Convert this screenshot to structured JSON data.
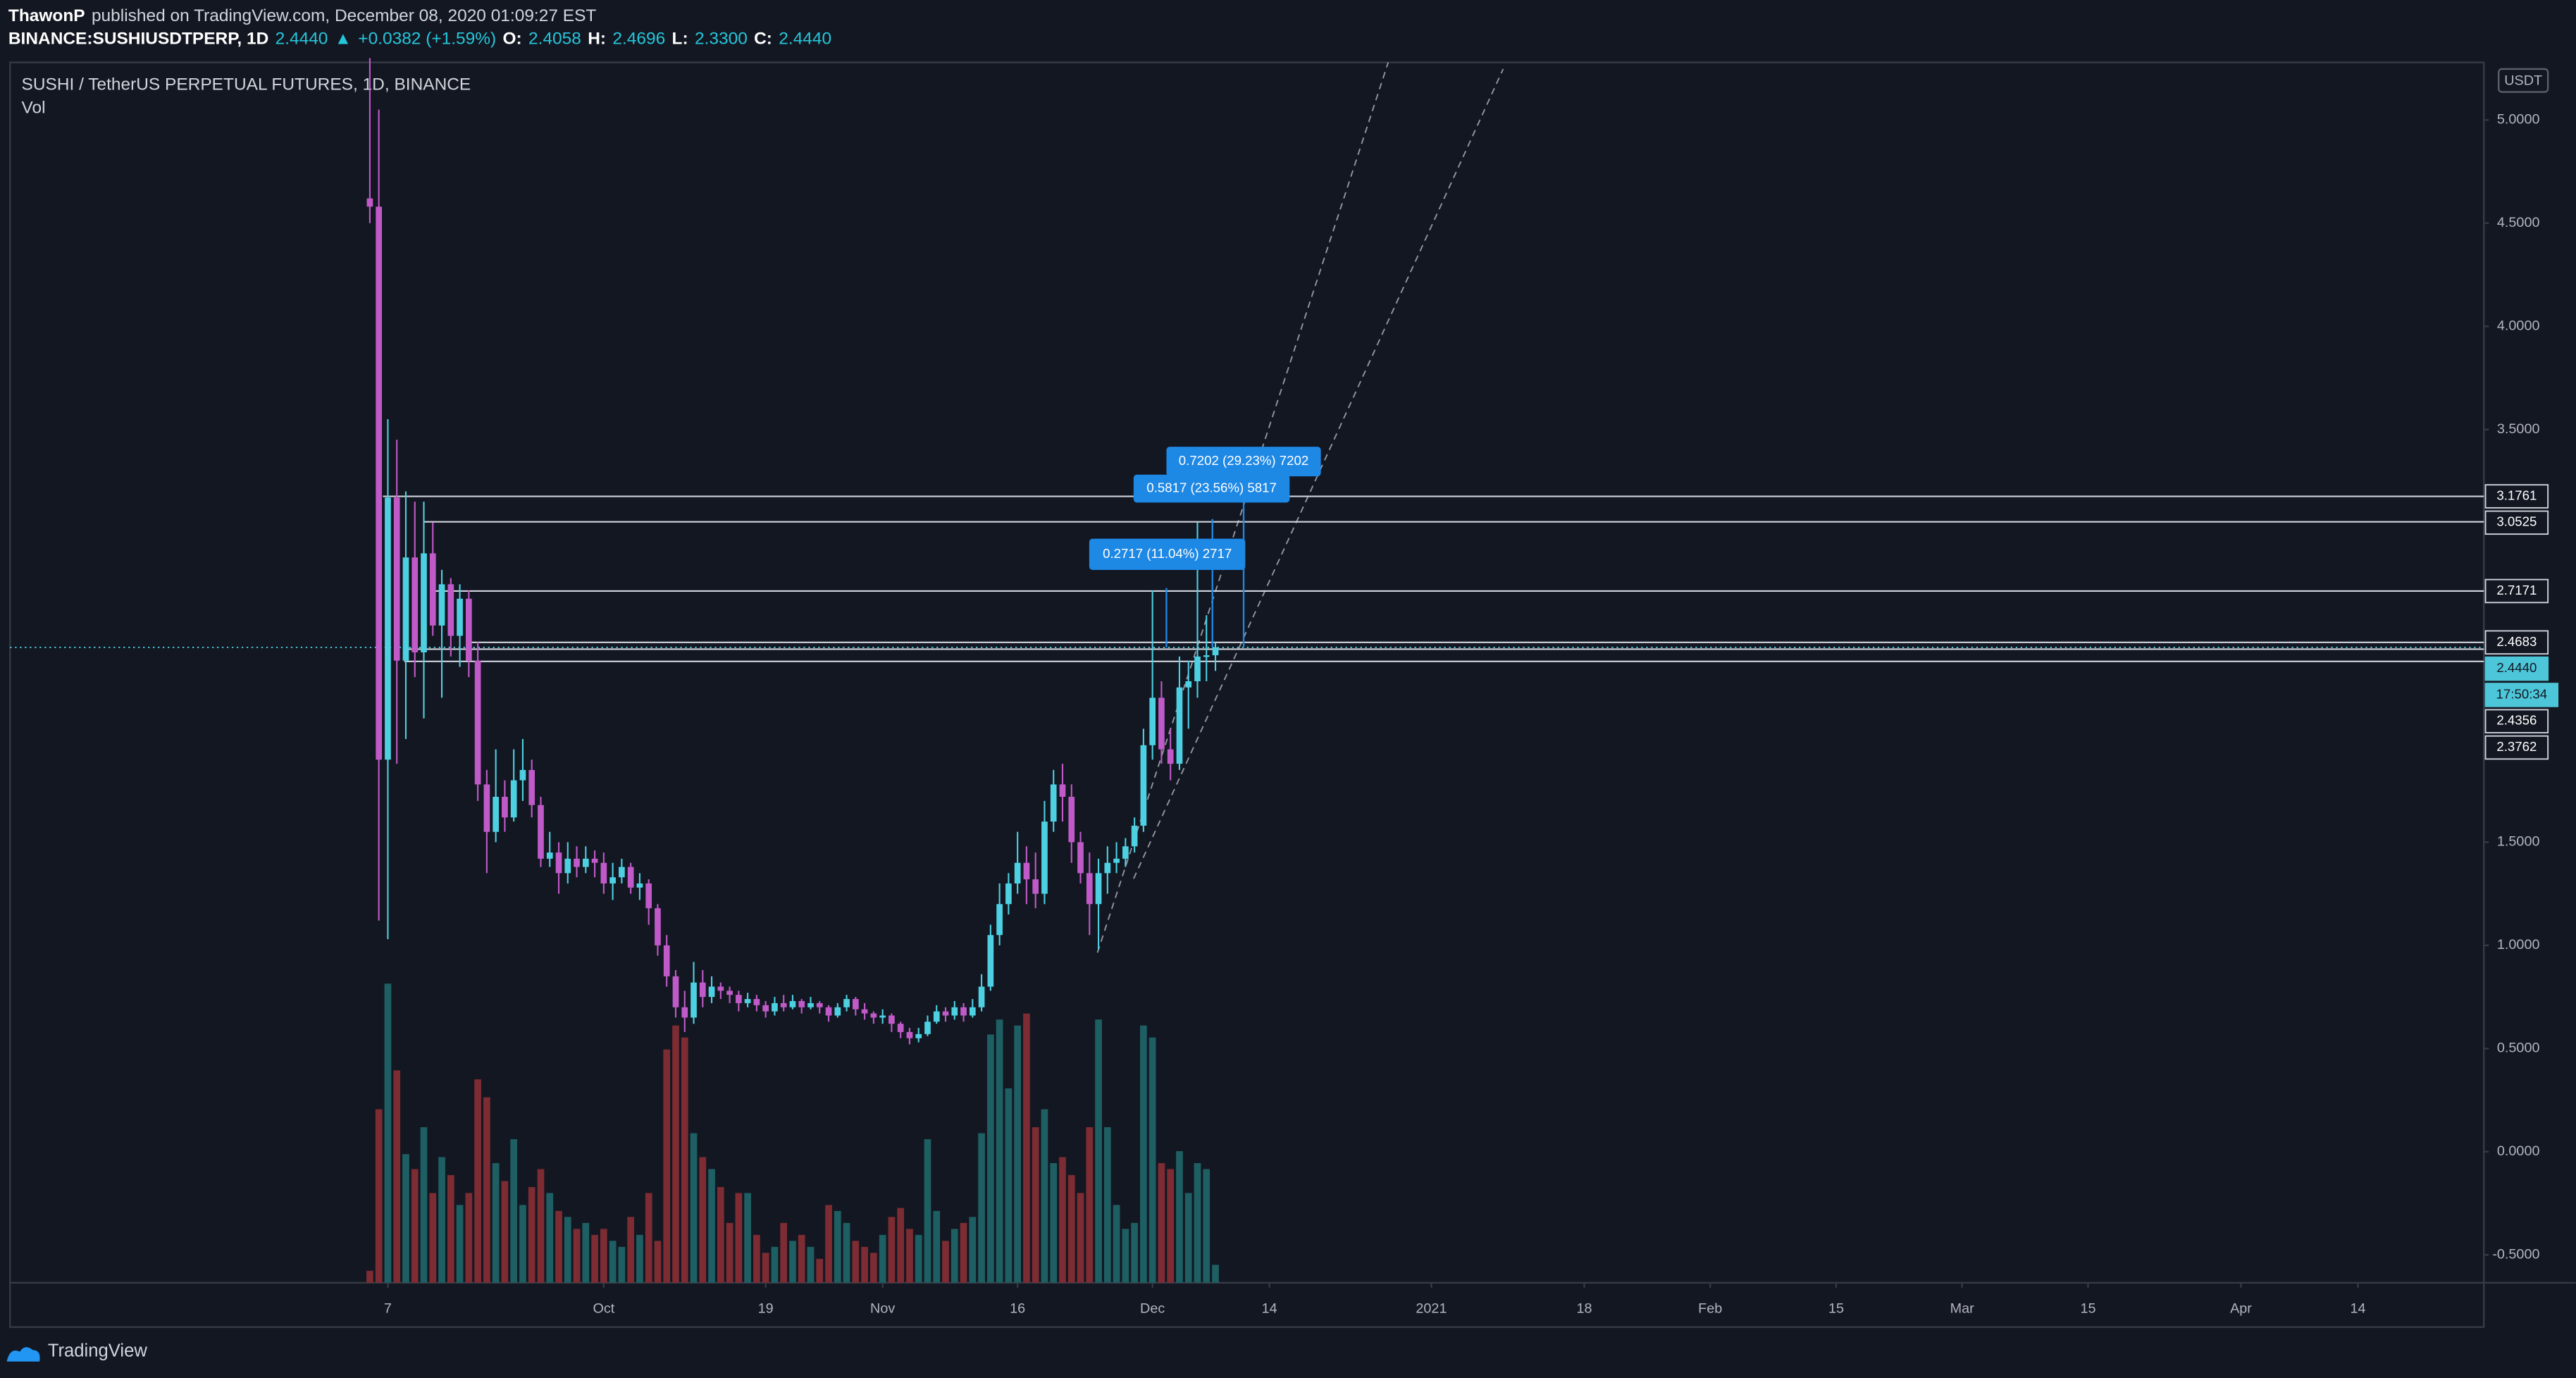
{
  "header": {
    "author": "ThawonP",
    "published": "published on TradingView.com, December 08, 2020 01:09:27 EST",
    "symbol": "BINANCE:SUSHIUSDTPERP, 1D",
    "last": "2.4440",
    "arrow": "▲",
    "change": "+0.0382 (+1.59%)",
    "ohlc": [
      [
        "O:",
        "2.4058"
      ],
      [
        "H:",
        "2.4696"
      ],
      [
        "L:",
        "2.3300"
      ],
      [
        "C:",
        "2.4440"
      ]
    ]
  },
  "footer": {
    "brand": "TradingView"
  },
  "chart_data": {
    "type": "candlestick",
    "title": "SUSHI / TetherUS PERPETUAL FUTURES, 1D, BINANCE",
    "volume_label": "Vol",
    "currency": "USDT",
    "x": [
      "2020-09-05",
      "2020-09-06",
      "2020-09-07",
      "2020-09-08",
      "2020-09-09",
      "2020-09-10",
      "2020-09-11",
      "2020-09-12",
      "2020-09-13",
      "2020-09-14",
      "2020-09-15",
      "2020-09-16",
      "2020-09-17",
      "2020-09-18",
      "2020-09-19",
      "2020-09-20",
      "2020-09-21",
      "2020-09-22",
      "2020-09-23",
      "2020-09-24",
      "2020-09-25",
      "2020-09-26",
      "2020-09-27",
      "2020-09-28",
      "2020-09-29",
      "2020-09-30",
      "2020-10-01",
      "2020-10-02",
      "2020-10-03",
      "2020-10-04",
      "2020-10-05",
      "2020-10-06",
      "2020-10-07",
      "2020-10-08",
      "2020-10-09",
      "2020-10-10",
      "2020-10-11",
      "2020-10-12",
      "2020-10-13",
      "2020-10-14",
      "2020-10-15",
      "2020-10-16",
      "2020-10-17",
      "2020-10-18",
      "2020-10-19",
      "2020-10-20",
      "2020-10-21",
      "2020-10-22",
      "2020-10-23",
      "2020-10-24",
      "2020-10-25",
      "2020-10-26",
      "2020-10-27",
      "2020-10-28",
      "2020-10-29",
      "2020-10-30",
      "2020-10-31",
      "2020-11-01",
      "2020-11-02",
      "2020-11-03",
      "2020-11-04",
      "2020-11-05",
      "2020-11-06",
      "2020-11-07",
      "2020-11-08",
      "2020-11-09",
      "2020-11-10",
      "2020-11-11",
      "2020-11-12",
      "2020-11-13",
      "2020-11-14",
      "2020-11-15",
      "2020-11-16",
      "2020-11-17",
      "2020-11-18",
      "2020-11-19",
      "2020-11-20",
      "2020-11-21",
      "2020-11-22",
      "2020-11-23",
      "2020-11-24",
      "2020-11-25",
      "2020-11-26",
      "2020-11-27",
      "2020-11-28",
      "2020-11-29",
      "2020-11-30",
      "2020-12-01",
      "2020-12-02",
      "2020-12-03",
      "2020-12-04",
      "2020-12-05",
      "2020-12-06",
      "2020-12-07",
      "2020-12-08"
    ],
    "open": [
      4.62,
      4.58,
      1.9,
      3.17,
      2.38,
      2.88,
      2.42,
      2.9,
      2.55,
      2.75,
      2.5,
      2.68,
      2.38,
      1.78,
      1.55,
      1.72,
      1.62,
      1.8,
      1.85,
      1.68,
      1.42,
      1.45,
      1.35,
      1.42,
      1.38,
      1.42,
      1.4,
      1.3,
      1.33,
      1.38,
      1.28,
      1.3,
      1.18,
      1.0,
      0.85,
      0.7,
      0.65,
      0.82,
      0.75,
      0.8,
      0.78,
      0.76,
      0.72,
      0.74,
      0.71,
      0.68,
      0.72,
      0.7,
      0.73,
      0.7,
      0.72,
      0.7,
      0.66,
      0.7,
      0.74,
      0.69,
      0.67,
      0.65,
      0.66,
      0.62,
      0.58,
      0.55,
      0.57,
      0.63,
      0.68,
      0.66,
      0.7,
      0.66,
      0.7,
      0.8,
      1.05,
      1.2,
      1.3,
      1.4,
      1.32,
      1.25,
      1.6,
      1.78,
      1.72,
      1.5,
      1.35,
      1.2,
      1.35,
      1.4,
      1.42,
      1.48,
      1.58,
      1.97,
      2.2,
      1.95,
      1.88,
      2.25,
      2.28,
      2.4,
      2.4058
    ],
    "high": [
      5.3,
      5.05,
      3.55,
      3.45,
      3.2,
      3.15,
      3.15,
      3.05,
      2.82,
      2.78,
      2.75,
      2.72,
      2.47,
      1.85,
      1.95,
      1.8,
      1.95,
      2.0,
      1.9,
      1.72,
      1.55,
      1.5,
      1.5,
      1.48,
      1.48,
      1.46,
      1.45,
      1.4,
      1.42,
      1.4,
      1.35,
      1.32,
      1.2,
      1.05,
      0.88,
      0.78,
      0.92,
      0.88,
      0.85,
      0.82,
      0.8,
      0.78,
      0.77,
      0.76,
      0.73,
      0.75,
      0.76,
      0.76,
      0.74,
      0.75,
      0.73,
      0.71,
      0.72,
      0.76,
      0.75,
      0.72,
      0.68,
      0.69,
      0.67,
      0.63,
      0.6,
      0.6,
      0.66,
      0.71,
      0.7,
      0.73,
      0.72,
      0.74,
      0.86,
      1.1,
      1.3,
      1.35,
      1.55,
      1.48,
      1.45,
      1.7,
      1.85,
      1.88,
      1.78,
      1.55,
      1.45,
      1.42,
      1.48,
      1.5,
      1.52,
      1.62,
      2.05,
      2.72,
      2.28,
      2.05,
      2.4,
      2.38,
      3.05,
      2.6,
      2.4696
    ],
    "low": [
      4.5,
      1.12,
      1.03,
      1.88,
      2.0,
      2.3,
      2.1,
      2.5,
      2.2,
      2.4,
      2.35,
      2.3,
      1.7,
      1.35,
      1.5,
      1.55,
      1.6,
      1.7,
      1.62,
      1.38,
      1.38,
      1.25,
      1.3,
      1.33,
      1.35,
      1.33,
      1.25,
      1.22,
      1.3,
      1.25,
      1.22,
      1.1,
      0.95,
      0.8,
      0.65,
      0.58,
      0.62,
      0.7,
      0.72,
      0.74,
      0.72,
      0.68,
      0.7,
      0.68,
      0.65,
      0.66,
      0.68,
      0.69,
      0.67,
      0.69,
      0.67,
      0.63,
      0.65,
      0.68,
      0.66,
      0.64,
      0.62,
      0.62,
      0.58,
      0.55,
      0.52,
      0.53,
      0.56,
      0.62,
      0.63,
      0.64,
      0.63,
      0.65,
      0.68,
      0.78,
      1.0,
      1.15,
      1.25,
      1.2,
      1.18,
      1.2,
      1.55,
      1.6,
      1.4,
      1.3,
      1.05,
      0.98,
      1.25,
      1.35,
      1.38,
      1.45,
      1.55,
      1.9,
      1.88,
      1.8,
      1.85,
      2.05,
      2.2,
      2.28,
      2.33
    ],
    "close": [
      4.58,
      1.9,
      3.17,
      2.38,
      2.88,
      2.42,
      2.9,
      2.55,
      2.75,
      2.5,
      2.68,
      2.38,
      1.78,
      1.55,
      1.72,
      1.62,
      1.8,
      1.85,
      1.68,
      1.42,
      1.45,
      1.35,
      1.42,
      1.38,
      1.42,
      1.4,
      1.3,
      1.33,
      1.38,
      1.28,
      1.3,
      1.18,
      1.0,
      0.85,
      0.7,
      0.65,
      0.82,
      0.75,
      0.8,
      0.78,
      0.76,
      0.72,
      0.74,
      0.71,
      0.68,
      0.72,
      0.7,
      0.73,
      0.7,
      0.72,
      0.7,
      0.66,
      0.7,
      0.74,
      0.69,
      0.67,
      0.65,
      0.66,
      0.62,
      0.58,
      0.55,
      0.57,
      0.63,
      0.68,
      0.66,
      0.7,
      0.66,
      0.7,
      0.8,
      1.05,
      1.2,
      1.3,
      1.4,
      1.32,
      1.25,
      1.6,
      1.78,
      1.72,
      1.5,
      1.35,
      1.2,
      1.35,
      1.4,
      1.42,
      1.48,
      1.58,
      1.97,
      2.2,
      1.95,
      1.88,
      2.25,
      2.28,
      2.4,
      2.4058,
      2.444
    ],
    "volume": [
      4,
      58,
      100,
      71,
      43,
      38,
      52,
      30,
      42,
      36,
      26,
      30,
      68,
      62,
      40,
      34,
      48,
      26,
      32,
      38,
      30,
      24,
      22,
      18,
      20,
      16,
      18,
      14,
      12,
      22,
      16,
      30,
      14,
      78,
      86,
      82,
      50,
      42,
      38,
      32,
      20,
      30,
      30,
      16,
      10,
      12,
      20,
      14,
      16,
      12,
      8,
      26,
      24,
      20,
      14,
      12,
      10,
      16,
      22,
      25,
      18,
      16,
      48,
      24,
      14,
      18,
      20,
      22,
      50,
      83,
      88,
      65,
      86,
      90,
      52,
      58,
      40,
      42,
      36,
      30,
      52,
      88,
      52,
      26,
      18,
      20,
      86,
      82,
      40,
      38,
      44,
      30,
      40,
      38,
      6
    ],
    "up_color": "#4dd0e1",
    "down_color": "#c05ac8",
    "volume_up_color": "#1e5f63",
    "volume_down_color": "#7c2c32",
    "price_line_color": "#d1d4dc",
    "last_price_color": "#4dc6d9",
    "measure_color": "#1e88e5",
    "ylim": [
      -0.635,
      5.279
    ],
    "yticks": [
      {
        "value": 5,
        "label": "5.0000"
      },
      {
        "value": 4.5,
        "label": "4.5000"
      },
      {
        "value": 4,
        "label": "4.0000"
      },
      {
        "value": 3.5,
        "label": "3.5000"
      },
      {
        "value": 1.5,
        "label": "1.5000"
      },
      {
        "value": 1,
        "label": "1.0000"
      },
      {
        "value": 0.5,
        "label": "0.5000"
      },
      {
        "value": 0,
        "label": "0.0000"
      },
      {
        "value": -0.5,
        "label": "-0.5000"
      }
    ],
    "y2lim": [
      0,
      408
    ],
    "xlim": [
      "2020-07-27",
      "2021-04-28"
    ],
    "xticks": [
      {
        "value": "2020-09-07",
        "label": "7"
      },
      {
        "value": "2020-10-01",
        "label": "Oct"
      },
      {
        "value": "2020-10-19",
        "label": "19"
      },
      {
        "value": "2020-11-01",
        "label": "Nov"
      },
      {
        "value": "2020-11-16",
        "label": "16"
      },
      {
        "value": "2020-12-01",
        "label": "Dec"
      },
      {
        "value": "2020-12-14",
        "label": "14"
      },
      {
        "value": "2021-01-01",
        "label": "2021"
      },
      {
        "value": "2021-01-18",
        "label": "18"
      },
      {
        "value": "2021-02-01",
        "label": "Feb"
      },
      {
        "value": "2021-02-15",
        "label": "15"
      },
      {
        "value": "2021-03-01",
        "label": "Mar"
      },
      {
        "value": "2021-03-15",
        "label": "15"
      },
      {
        "value": "2021-04-01",
        "label": "Apr"
      },
      {
        "value": "2021-04-14",
        "label": "14"
      }
    ],
    "price_lines": [
      3.1761,
      3.0525,
      2.7171,
      2.4683,
      2.4356,
      2.3762
    ],
    "last_price": {
      "value": 2.444,
      "label": "2.4440"
    },
    "countdown": "17:50:34",
    "measure_labels": [
      "0.7202 (29.23%) 7202",
      "0.5817 (23.56%) 5817",
      "0.2717 (11.04%) 2717"
    ],
    "grid": false
  }
}
